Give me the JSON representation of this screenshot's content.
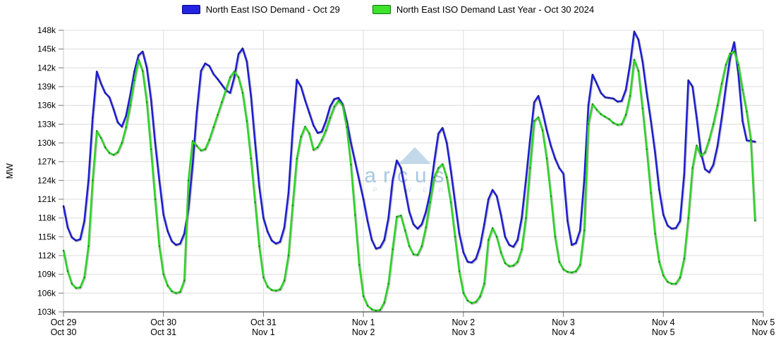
{
  "legend": {
    "items": [
      {
        "id": "current",
        "label": "North East ISO Demand - Oct 29",
        "color": "#2323e0",
        "border": "#00008b"
      },
      {
        "id": "last_year",
        "label": "North East ISO Demand Last Year - Oct 30 2024",
        "color": "#3de32c",
        "border": "#0a6e0a"
      }
    ]
  },
  "watermark": {
    "text": "arcus",
    "subtext": "P O W E R",
    "text_color": "#a9c9e0",
    "sub_color": "#c9dfee",
    "triangle_color": "#c3d9ea"
  },
  "axes": {
    "ylabel": "MW",
    "y_tick_labels": [
      "103k",
      "106k",
      "109k",
      "112k",
      "115k",
      "118k",
      "121k",
      "124k",
      "127k",
      "130k",
      "133k",
      "136k",
      "139k",
      "142k",
      "145k",
      "148k"
    ],
    "x_tick_labels": [
      {
        "this_year": "Oct 29",
        "last_year": "Oct 30"
      },
      {
        "this_year": "Oct 30",
        "last_year": "Oct 31"
      },
      {
        "this_year": "Oct 31",
        "last_year": "Nov 1"
      },
      {
        "this_year": "Nov 1",
        "last_year": "Nov 2"
      },
      {
        "this_year": "Nov 2",
        "last_year": "Nov 3"
      },
      {
        "this_year": "Nov 3",
        "last_year": "Nov 4"
      },
      {
        "this_year": "Nov 4",
        "last_year": "Nov 5"
      },
      {
        "this_year": "Nov 5",
        "last_year": "Nov 6"
      }
    ]
  },
  "chart_data": {
    "type": "line",
    "title": "",
    "xlabel": "",
    "ylabel": "MW",
    "units": "thousand MW",
    "ylim": [
      103,
      148
    ],
    "y_tick_step": 3,
    "days": 7,
    "hours_per_day": 24,
    "grid": true,
    "legend_position": "top",
    "x_is_hourly": true,
    "series": [
      {
        "name": "North East ISO Demand - Oct 29",
        "color": "#1f1fd2",
        "values": [
          119.9,
          116.5,
          114.9,
          114.4,
          114.6,
          117.5,
          124.0,
          134.0,
          141.4,
          139.5,
          138.0,
          137.3,
          135.4,
          133.3,
          132.6,
          134.3,
          137.6,
          141.4,
          144.0,
          144.6,
          142.0,
          137.0,
          130.0,
          124.0,
          118.5,
          115.9,
          114.3,
          113.7,
          113.9,
          115.5,
          119.5,
          126.5,
          135.0,
          141.5,
          142.7,
          142.3,
          141.0,
          140.2,
          139.3,
          138.4,
          138.0,
          140.5,
          144.2,
          145.1,
          143.0,
          137.5,
          130.0,
          123.0,
          118.0,
          115.8,
          114.4,
          113.9,
          114.2,
          116.5,
          122.0,
          132.0,
          140.1,
          139.0,
          136.8,
          134.8,
          132.8,
          131.6,
          131.8,
          133.5,
          135.8,
          137.0,
          137.2,
          136.2,
          133.5,
          130.0,
          127.0,
          124.0,
          121.0,
          117.5,
          114.5,
          113.1,
          113.3,
          114.5,
          118.0,
          124.0,
          127.2,
          126.0,
          122.5,
          119.0,
          117.0,
          116.3,
          117.0,
          119.0,
          122.0,
          127.0,
          131.5,
          132.4,
          130.0,
          125.5,
          120.5,
          115.5,
          112.5,
          111.0,
          110.9,
          111.5,
          113.5,
          117.0,
          121.0,
          122.5,
          121.5,
          118.5,
          115.0,
          113.7,
          113.4,
          114.5,
          118.0,
          124.0,
          130.5,
          136.5,
          137.5,
          135.0,
          132.0,
          129.5,
          127.5,
          126.0,
          125.1,
          117.5,
          113.7,
          114.0,
          116.0,
          124.0,
          136.0,
          140.9,
          139.5,
          138.0,
          137.3,
          137.2,
          137.1,
          136.6,
          136.7,
          138.5,
          142.5,
          147.8,
          146.5,
          143.0,
          138.0,
          133.5,
          128.5,
          122.5,
          118.5,
          116.8,
          116.3,
          116.4,
          117.5,
          125.0,
          140.0,
          139.0,
          134.0,
          128.5,
          125.8,
          125.3,
          126.5,
          129.5,
          134.0,
          139.0,
          143.5,
          146.1,
          141.0,
          133.5,
          130.4,
          130.3,
          130.2
        ]
      },
      {
        "name": "North East ISO Demand Last Year - Oct 30 2024",
        "color": "#2ed428",
        "values": [
          112.8,
          109.5,
          107.5,
          106.8,
          106.9,
          108.5,
          113.5,
          124.0,
          131.9,
          130.8,
          129.3,
          128.4,
          128.1,
          128.5,
          130.0,
          132.5,
          136.0,
          140.0,
          143.3,
          141.5,
          136.5,
          129.0,
          121.0,
          113.5,
          109.0,
          107.2,
          106.3,
          106.0,
          106.2,
          108.0,
          124.0,
          130.3,
          129.5,
          128.8,
          129.0,
          130.5,
          132.5,
          134.5,
          136.5,
          138.5,
          140.5,
          141.4,
          140.5,
          138.0,
          133.5,
          127.5,
          120.5,
          113.5,
          108.5,
          107.0,
          106.5,
          106.4,
          106.6,
          108.0,
          112.0,
          120.0,
          127.5,
          131.0,
          132.6,
          131.5,
          128.9,
          129.3,
          130.5,
          132.0,
          134.0,
          135.8,
          136.7,
          136.0,
          132.5,
          126.5,
          118.5,
          110.5,
          105.5,
          104.0,
          103.4,
          103.2,
          103.3,
          104.5,
          107.5,
          113.0,
          118.2,
          118.4,
          116.0,
          113.5,
          112.2,
          112.1,
          113.5,
          116.5,
          120.5,
          124.5,
          126.0,
          126.6,
          124.5,
          120.5,
          115.0,
          109.5,
          106.0,
          104.8,
          104.4,
          104.6,
          105.5,
          107.5,
          114.5,
          116.4,
          115.0,
          112.5,
          110.8,
          110.3,
          110.4,
          111.0,
          113.0,
          118.0,
          126.0,
          133.5,
          134.1,
          132.0,
          127.5,
          121.5,
          115.0,
          111.0,
          109.8,
          109.4,
          109.3,
          109.5,
          110.5,
          116.0,
          133.0,
          136.2,
          135.3,
          134.6,
          134.2,
          133.8,
          133.2,
          132.9,
          133.0,
          134.5,
          137.5,
          143.3,
          141.5,
          135.5,
          129.0,
          122.0,
          115.5,
          111.0,
          108.8,
          107.8,
          107.5,
          107.5,
          108.5,
          111.5,
          118.0,
          126.0,
          129.6,
          127.9,
          128.5,
          130.5,
          133.0,
          136.0,
          139.5,
          142.5,
          144.3,
          144.6,
          142.5,
          138.5,
          135.0,
          130.5,
          117.6
        ]
      }
    ]
  },
  "style": {
    "grid_color": "#dcdcdc",
    "border_color": "#c9c9c9",
    "axis_color": "#444444",
    "tick_color": "#777777",
    "text_color": "#000000",
    "marker_color": "#1a1a1a"
  }
}
